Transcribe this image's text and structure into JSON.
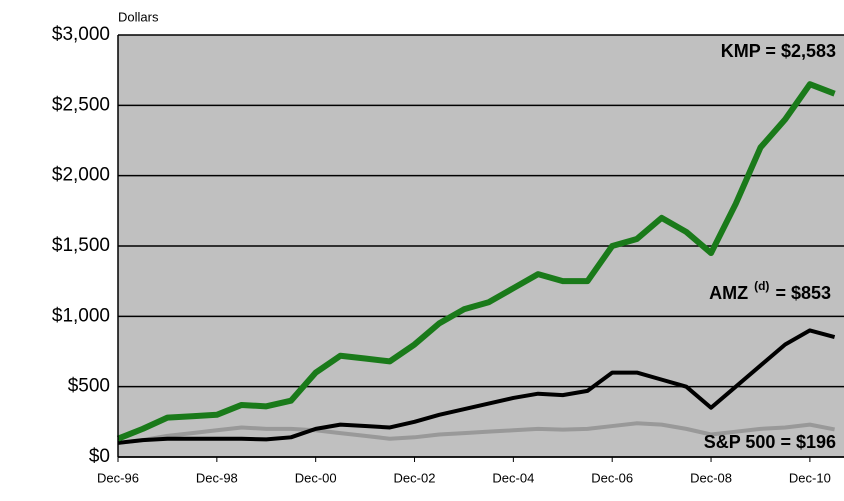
{
  "chart_data": {
    "type": "line",
    "y_label": "Dollars",
    "x": [
      "Dec-96",
      "Jun-97",
      "Dec-97",
      "Jun-98",
      "Dec-98",
      "Jun-99",
      "Dec-99",
      "Jun-00",
      "Dec-00",
      "Jun-01",
      "Dec-01",
      "Jun-02",
      "Dec-02",
      "Jun-03",
      "Dec-03",
      "Jun-04",
      "Dec-04",
      "Jun-05",
      "Dec-05",
      "Jun-06",
      "Dec-06",
      "Jun-07",
      "Dec-07",
      "Jun-08",
      "Dec-08",
      "Jun-09",
      "Dec-09",
      "Jun-10",
      "Dec-10",
      "Jun-11"
    ],
    "xticks": [
      "Dec-96",
      "Dec-98",
      "Dec-00",
      "Dec-02",
      "Dec-04",
      "Dec-06",
      "Dec-08",
      "Dec-10"
    ],
    "ylim": [
      0,
      3000
    ],
    "yticks": [
      {
        "value": 0,
        "label": "$0"
      },
      {
        "value": 500,
        "label": "$500"
      },
      {
        "value": 1000,
        "label": "$1,000"
      },
      {
        "value": 1500,
        "label": "$1,500"
      },
      {
        "value": 2000,
        "label": "$2,000"
      },
      {
        "value": 2500,
        "label": "$2,500"
      },
      {
        "value": 3000,
        "label": "$3,000"
      }
    ],
    "grid": true,
    "background": "#c0c0c0",
    "series": [
      {
        "name": "KMP",
        "color": "#1a7a1a",
        "width": 6,
        "values": [
          130,
          200,
          280,
          290,
          300,
          370,
          360,
          400,
          600,
          720,
          700,
          680,
          800,
          950,
          1050,
          1100,
          1200,
          1300,
          1250,
          1250,
          1500,
          1550,
          1700,
          1600,
          1450,
          1800,
          2200,
          2400,
          2650,
          2583
        ]
      },
      {
        "name": "AMZ",
        "color": "#000000",
        "width": 4,
        "values": [
          100,
          120,
          130,
          130,
          130,
          130,
          125,
          140,
          200,
          230,
          220,
          210,
          250,
          300,
          340,
          380,
          420,
          450,
          440,
          470,
          600,
          600,
          550,
          500,
          350,
          500,
          650,
          800,
          900,
          853
        ]
      },
      {
        "name": "S&P 500",
        "color": "#999999",
        "width": 4,
        "values": [
          100,
          120,
          150,
          170,
          190,
          210,
          200,
          200,
          190,
          170,
          150,
          130,
          140,
          160,
          170,
          180,
          190,
          200,
          195,
          200,
          220,
          240,
          230,
          200,
          160,
          180,
          200,
          210,
          230,
          196
        ]
      }
    ],
    "annotations": [
      {
        "text": "KMP = $2,583"
      },
      {
        "text": "AMZ",
        "sup": "(d)",
        "after": "= $853"
      },
      {
        "text": "S&P 500 = $196"
      }
    ]
  }
}
